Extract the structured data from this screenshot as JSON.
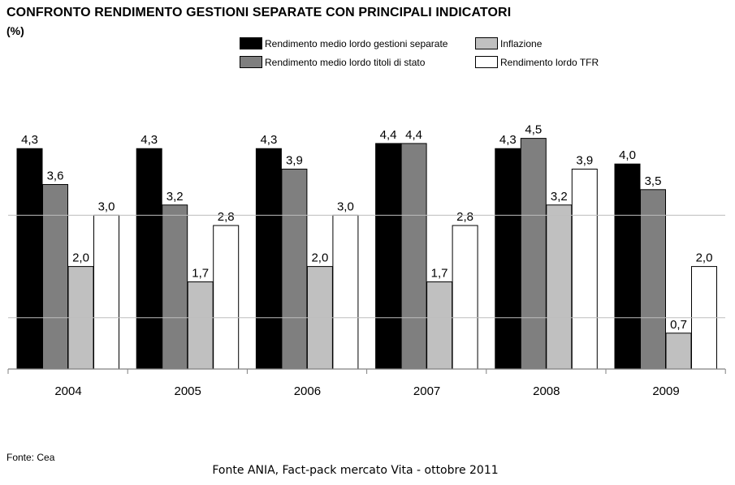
{
  "chart_data": {
    "type": "bar",
    "title": "CONFRONTO RENDIMENTO GESTIONI SEPARATE CON PRINCIPALI INDICATORI",
    "unit_label": "(%)",
    "categories": [
      "2004",
      "2005",
      "2006",
      "2007",
      "2008",
      "2009"
    ],
    "series": [
      {
        "name": "Rendimento medio lordo gestioni separate",
        "color": "#000000",
        "values": [
          4.3,
          4.3,
          4.3,
          4.4,
          4.3,
          4.0
        ],
        "labels": [
          "4,3",
          "4,3",
          "4,3",
          "4,4",
          "4,3",
          "4,0"
        ]
      },
      {
        "name": "Rendimento medio lordo titoli di stato",
        "color": "#7f7f7f",
        "values": [
          3.6,
          3.2,
          3.9,
          4.4,
          4.5,
          3.5
        ],
        "labels": [
          "3,6",
          "3,2",
          "3,9",
          "4,4",
          "4,5",
          "3,5"
        ]
      },
      {
        "name": "Inflazione",
        "color": "#c0c0c0",
        "values": [
          2.0,
          1.7,
          2.0,
          1.7,
          3.2,
          0.7
        ],
        "labels": [
          "2,0",
          "1,7",
          "2,0",
          "1,7",
          "3,2",
          "0,7"
        ]
      },
      {
        "name": "Rendimento lordo TFR",
        "color": "#ffffff",
        "values": [
          3.0,
          2.8,
          3.0,
          2.8,
          3.9,
          2.0
        ],
        "labels": [
          "3,0",
          "2,8",
          "3,0",
          "2,8",
          "3,9",
          "2,0"
        ]
      }
    ],
    "ylim": [
      0,
      5
    ],
    "gridlines": [
      1,
      3
    ],
    "legend_position": "top-right",
    "xlabel": "",
    "ylabel": ""
  },
  "source_text": "Fonte: Cea",
  "caption_text": "Fonte ANIA, Fact-pack mercato Vita - ottobre 2011"
}
